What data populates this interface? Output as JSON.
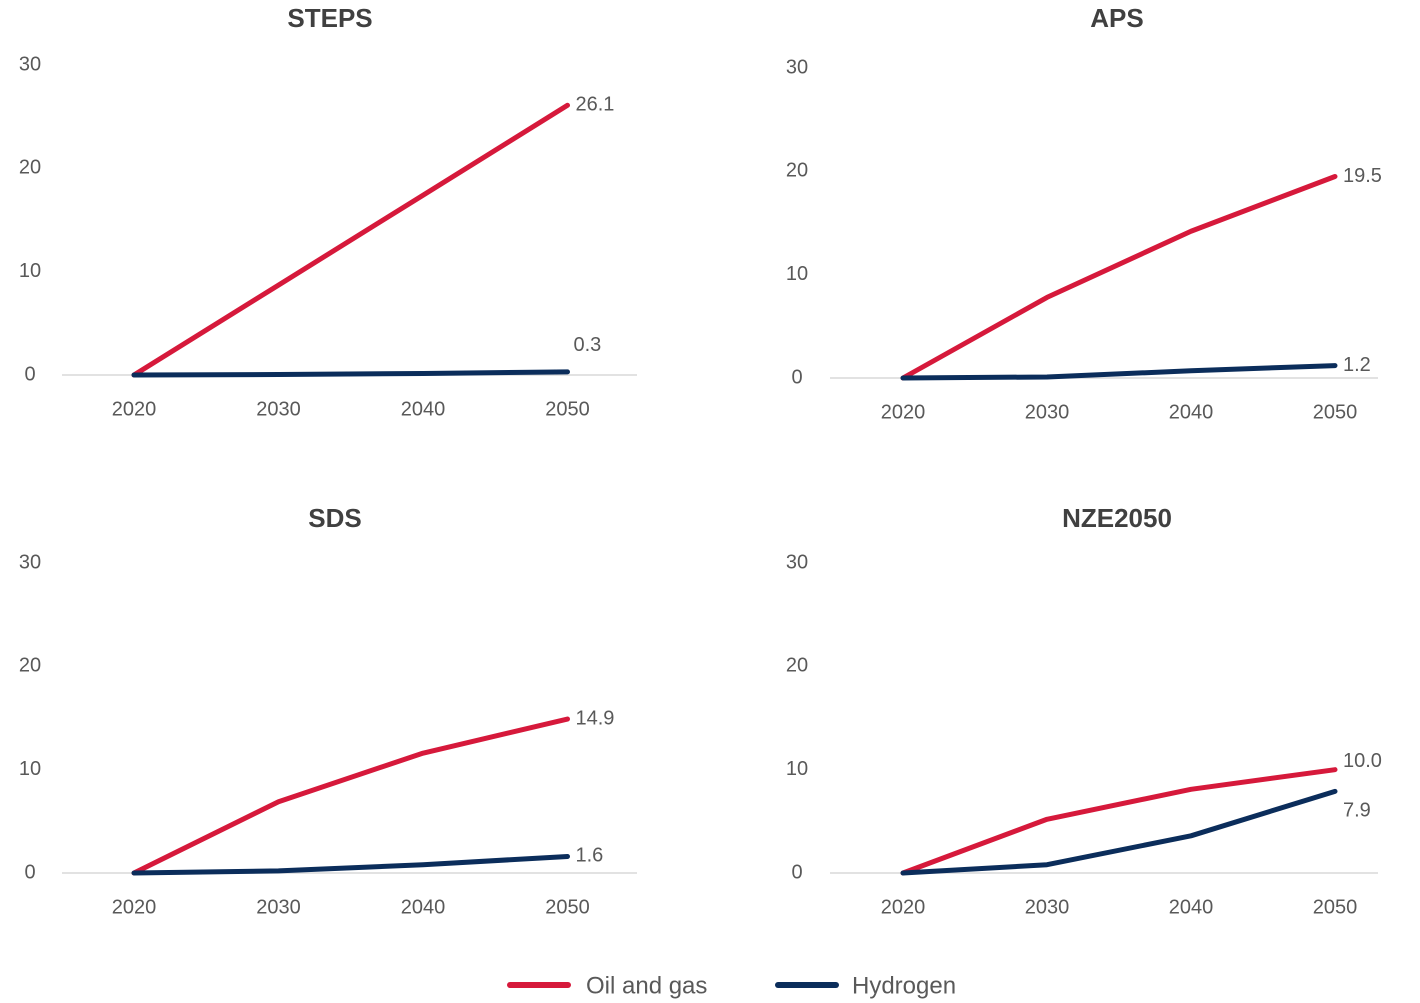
{
  "chart_data": [
    {
      "type": "line",
      "title": "STEPS",
      "categories": [
        "2020",
        "2030",
        "2040",
        "2050"
      ],
      "ylim": [
        0,
        30
      ],
      "yticks": [
        0,
        10,
        20,
        30
      ],
      "series": [
        {
          "name": "Oil and gas",
          "color": "#d6193b",
          "values": [
            0,
            8.7,
            17.4,
            26.1
          ],
          "value_labels": [
            null,
            null,
            null,
            "26.1"
          ]
        },
        {
          "name": "Hydrogen",
          "color": "#0b2d5b",
          "values": [
            0,
            0.05,
            0.15,
            0.3
          ],
          "value_labels": [
            null,
            null,
            null,
            "0.3"
          ]
        }
      ]
    },
    {
      "type": "line",
      "title": "APS",
      "categories": [
        "2020",
        "2030",
        "2040",
        "2050"
      ],
      "ylim": [
        0,
        30
      ],
      "yticks": [
        0,
        10,
        20,
        30
      ],
      "series": [
        {
          "name": "Oil and gas",
          "color": "#d6193b",
          "values": [
            0,
            7.8,
            14.2,
            19.5
          ],
          "value_labels": [
            null,
            null,
            null,
            "19.5"
          ]
        },
        {
          "name": "Hydrogen",
          "color": "#0b2d5b",
          "values": [
            0,
            0.1,
            0.7,
            1.2
          ],
          "value_labels": [
            null,
            null,
            null,
            "1.2"
          ]
        }
      ]
    },
    {
      "type": "line",
      "title": "SDS",
      "categories": [
        "2020",
        "2030",
        "2040",
        "2050"
      ],
      "ylim": [
        0,
        30
      ],
      "yticks": [
        0,
        10,
        20,
        30
      ],
      "series": [
        {
          "name": "Oil and gas",
          "color": "#d6193b",
          "values": [
            0,
            6.9,
            11.6,
            14.9
          ],
          "value_labels": [
            null,
            null,
            null,
            "14.9"
          ]
        },
        {
          "name": "Hydrogen",
          "color": "#0b2d5b",
          "values": [
            0,
            0.2,
            0.8,
            1.6
          ],
          "value_labels": [
            null,
            null,
            null,
            "1.6"
          ]
        }
      ]
    },
    {
      "type": "line",
      "title": "NZE2050",
      "categories": [
        "2020",
        "2030",
        "2040",
        "2050"
      ],
      "ylim": [
        0,
        30
      ],
      "yticks": [
        0,
        10,
        20,
        30
      ],
      "series": [
        {
          "name": "Oil and gas",
          "color": "#d6193b",
          "values": [
            0,
            5.2,
            8.1,
            10.0
          ],
          "value_labels": [
            null,
            null,
            null,
            "10.0"
          ]
        },
        {
          "name": "Hydrogen",
          "color": "#0b2d5b",
          "values": [
            0,
            0.8,
            3.6,
            7.9
          ],
          "value_labels": [
            null,
            null,
            null,
            "7.9"
          ]
        }
      ]
    }
  ]
}
